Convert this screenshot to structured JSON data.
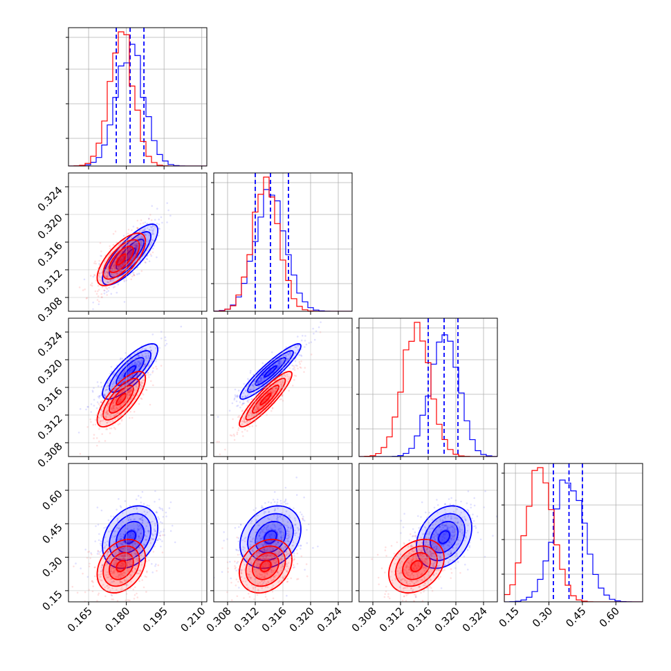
{
  "chart_data": {
    "type": "corner",
    "colors": {
      "blue": "#0000ff",
      "red": "#ff0000"
    },
    "grid": true,
    "params": [
      {
        "range": [
          0.157,
          0.212
        ],
        "ticks": [
          0.165,
          0.18,
          0.195,
          0.21
        ],
        "tick_labels": [
          "0.165",
          "0.180",
          "0.195",
          "0.210"
        ]
      },
      {
        "range": [
          0.306,
          0.326
        ],
        "ticks": [
          0.308,
          0.312,
          0.316,
          0.32,
          0.324
        ],
        "tick_labels": [
          "0.308",
          "0.312",
          "0.316",
          "0.320",
          "0.324"
        ]
      },
      {
        "range": [
          0.306,
          0.326
        ],
        "ticks": [
          0.308,
          0.312,
          0.316,
          0.32,
          0.324
        ],
        "tick_labels": [
          "0.308",
          "0.312",
          "0.316",
          "0.320",
          "0.324"
        ]
      },
      {
        "range": [
          0.1,
          0.72
        ],
        "ticks": [
          0.15,
          0.3,
          0.45,
          0.6
        ],
        "tick_labels": [
          "0.15",
          "0.30",
          "0.45",
          "0.60"
        ]
      }
    ],
    "series": [
      {
        "color": "blue",
        "mean": [
          0.1815,
          0.3142,
          0.3183,
          0.39
        ],
        "sd": [
          0.0055,
          0.0022,
          0.002,
          0.07
        ],
        "corr": [
          [
            1,
            0.8,
            0.8,
            0.3
          ],
          [
            0.8,
            1,
            0.92,
            0.25
          ],
          [
            0.8,
            0.92,
            1,
            0.3
          ],
          [
            0.3,
            0.25,
            0.3,
            1
          ]
        ],
        "quantiles": [
          [
            0.176,
            0.1815,
            0.187
          ],
          [
            0.312,
            0.3142,
            0.3168
          ],
          [
            0.316,
            0.3183,
            0.3203
          ],
          [
            0.32,
            0.39,
            0.45
          ]
        ]
      },
      {
        "color": "red",
        "mean": [
          0.178,
          0.3135,
          0.3143,
          0.26
        ],
        "sd": [
          0.0048,
          0.0019,
          0.002,
          0.06
        ],
        "corr": [
          [
            1,
            0.7,
            0.75,
            0.3
          ],
          [
            0.7,
            1,
            0.9,
            0.25
          ],
          [
            0.75,
            0.9,
            1,
            0.3
          ],
          [
            0.3,
            0.25,
            0.3,
            1
          ]
        ]
      }
    ],
    "contour_levels_sigma": [
      0.5,
      1.0,
      1.5,
      2.0
    ],
    "hist_bins": 25
  }
}
